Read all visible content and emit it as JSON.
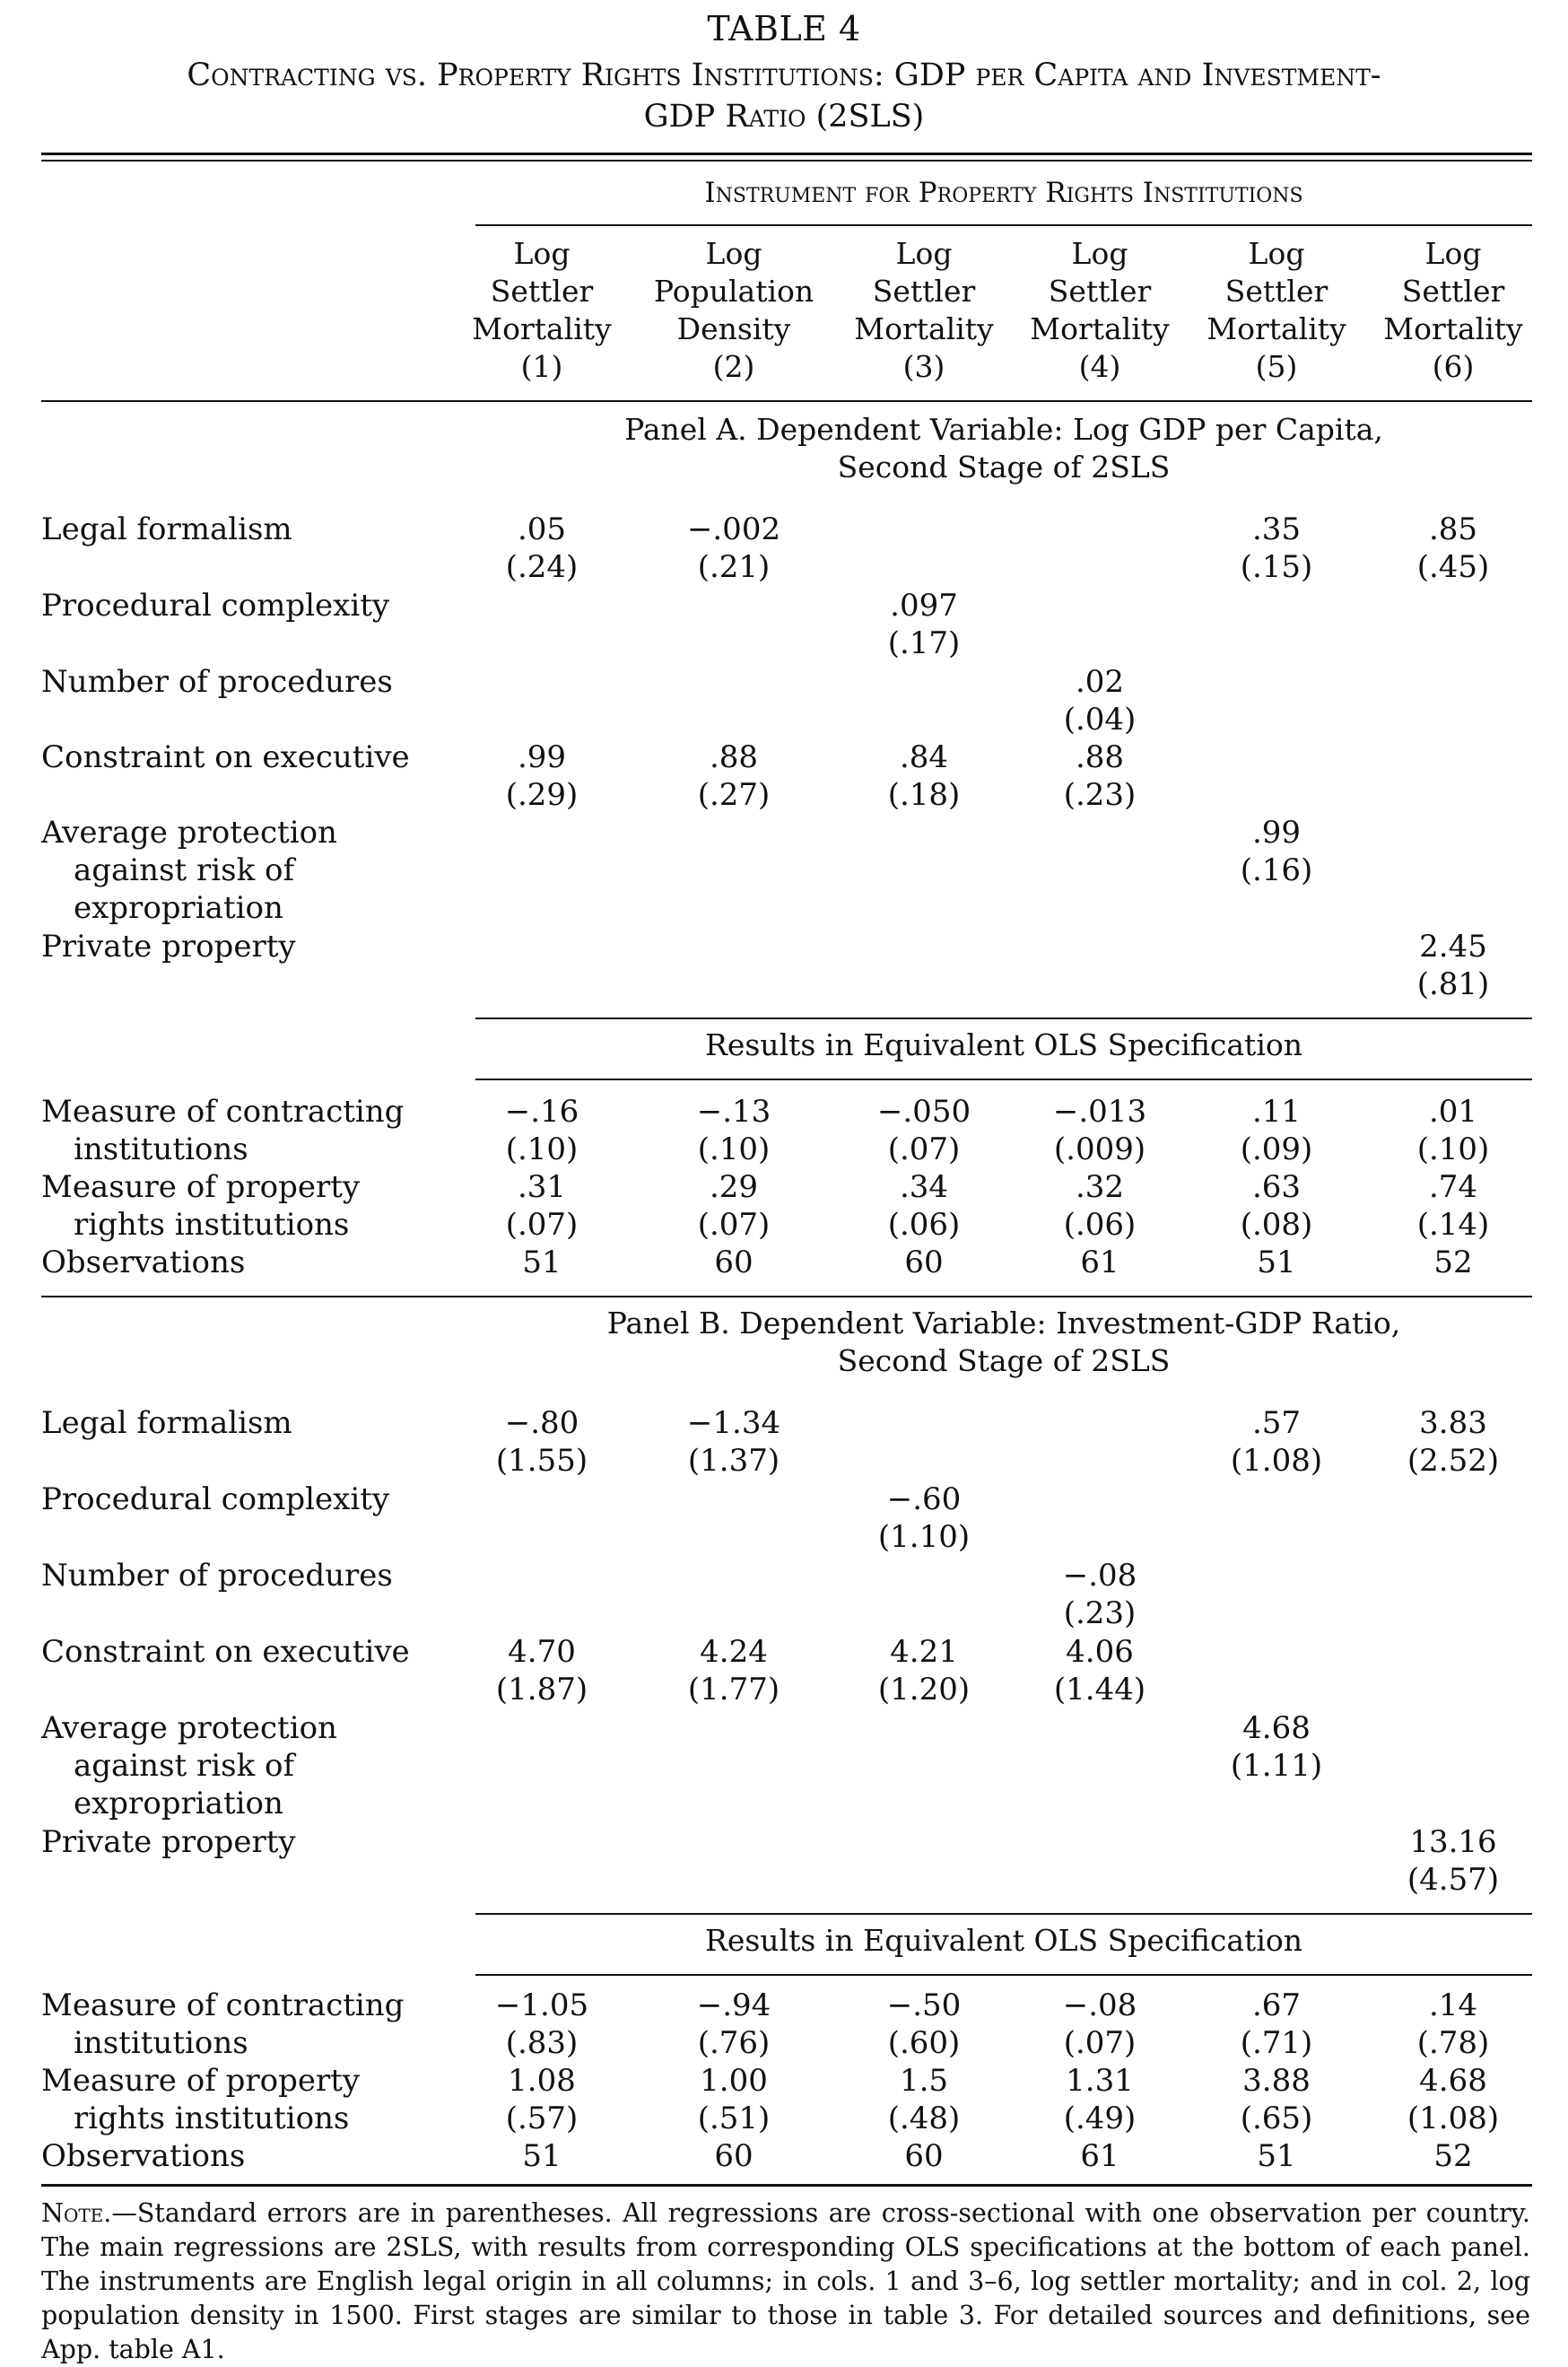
{
  "table_number": "TABLE 4",
  "title_line1": "Contracting vs. Property Rights Institutions: GDP per Capita and Investment-",
  "title_line2": "GDP Ratio (2SLS)",
  "instrument_header": "Instrument for Property Rights Institutions",
  "columns": [
    {
      "lines": [
        "Log",
        "Settler",
        "Mortality",
        "(1)"
      ]
    },
    {
      "lines": [
        "Log",
        "Population",
        "Density",
        "(2)"
      ]
    },
    {
      "lines": [
        "Log",
        "Settler",
        "Mortality",
        "(3)"
      ]
    },
    {
      "lines": [
        "Log",
        "Settler",
        "Mortality",
        "(4)"
      ]
    },
    {
      "lines": [
        "Log",
        "Settler",
        "Mortality",
        "(5)"
      ]
    },
    {
      "lines": [
        "Log",
        "Settler",
        "Mortality",
        "(6)"
      ]
    }
  ],
  "panel_a": {
    "title_line1": "Panel A. Dependent Variable: Log GDP per Capita,",
    "title_line2": "Second Stage of 2SLS",
    "rows": [
      {
        "label": [
          "Legal formalism"
        ],
        "coef": [
          ".05",
          "−.002",
          "",
          "",
          ".35",
          ".85"
        ],
        "se": [
          "(.24)",
          "(.21)",
          "",
          "",
          "(.15)",
          "(.45)"
        ]
      },
      {
        "label": [
          "Procedural complexity"
        ],
        "coef": [
          "",
          "",
          ".097",
          "",
          "",
          ""
        ],
        "se": [
          "",
          "",
          "(.17)",
          "",
          "",
          ""
        ]
      },
      {
        "label": [
          "Number of procedures"
        ],
        "coef": [
          "",
          "",
          "",
          ".02",
          "",
          ""
        ],
        "se": [
          "",
          "",
          "",
          "(.04)",
          "",
          ""
        ]
      },
      {
        "label": [
          "Constraint on executive"
        ],
        "coef": [
          ".99",
          ".88",
          ".84",
          ".88",
          "",
          ""
        ],
        "se": [
          "(.29)",
          "(.27)",
          "(.18)",
          "(.23)",
          "",
          ""
        ]
      },
      {
        "label": [
          "Average protection",
          "against risk of",
          "expropriation"
        ],
        "coef": [
          "",
          "",
          "",
          "",
          ".99",
          ""
        ],
        "se": [
          "",
          "",
          "",
          "",
          "(.16)",
          ""
        ]
      },
      {
        "label": [
          "Private property"
        ],
        "coef": [
          "",
          "",
          "",
          "",
          "",
          "2.45"
        ],
        "se": [
          "",
          "",
          "",
          "",
          "",
          "(.81)"
        ]
      }
    ],
    "ols_title": "Results in Equivalent OLS Specification",
    "ols_rows": [
      {
        "label": [
          "Measure of contracting",
          "institutions"
        ],
        "coef": [
          "−.16",
          "−.13",
          "−.050",
          "−.013",
          ".11",
          ".01"
        ],
        "se": [
          "(.10)",
          "(.10)",
          "(.07)",
          "(.009)",
          "(.09)",
          "(.10)"
        ]
      },
      {
        "label": [
          "Measure of property",
          "rights institutions"
        ],
        "coef": [
          ".31",
          ".29",
          ".34",
          ".32",
          ".63",
          ".74"
        ],
        "se": [
          "(.07)",
          "(.07)",
          "(.06)",
          "(.06)",
          "(.08)",
          "(.14)"
        ]
      }
    ],
    "observations_label": "Observations",
    "observations": [
      "51",
      "60",
      "60",
      "61",
      "51",
      "52"
    ]
  },
  "panel_b": {
    "title_line1": "Panel B. Dependent Variable: Investment-GDP Ratio,",
    "title_line2": "Second Stage of 2SLS",
    "rows": [
      {
        "label": [
          "Legal formalism"
        ],
        "coef": [
          "−.80",
          "−1.34",
          "",
          "",
          ".57",
          "3.83"
        ],
        "se": [
          "(1.55)",
          "(1.37)",
          "",
          "",
          "(1.08)",
          "(2.52)"
        ]
      },
      {
        "label": [
          "Procedural complexity"
        ],
        "coef": [
          "",
          "",
          "−.60",
          "",
          "",
          ""
        ],
        "se": [
          "",
          "",
          "(1.10)",
          "",
          "",
          ""
        ]
      },
      {
        "label": [
          "Number of procedures"
        ],
        "coef": [
          "",
          "",
          "",
          "−.08",
          "",
          ""
        ],
        "se": [
          "",
          "",
          "",
          "(.23)",
          "",
          ""
        ]
      },
      {
        "label": [
          "Constraint on executive"
        ],
        "coef": [
          "4.70",
          "4.24",
          "4.21",
          "4.06",
          "",
          ""
        ],
        "se": [
          "(1.87)",
          "(1.77)",
          "(1.20)",
          "(1.44)",
          "",
          ""
        ]
      },
      {
        "label": [
          "Average protection",
          "against risk of",
          "expropriation"
        ],
        "coef": [
          "",
          "",
          "",
          "",
          "4.68",
          ""
        ],
        "se": [
          "",
          "",
          "",
          "",
          "(1.11)",
          ""
        ]
      },
      {
        "label": [
          "Private property"
        ],
        "coef": [
          "",
          "",
          "",
          "",
          "",
          "13.16"
        ],
        "se": [
          "",
          "",
          "",
          "",
          "",
          "(4.57)"
        ]
      }
    ],
    "ols_title": "Results in Equivalent OLS Specification",
    "ols_rows": [
      {
        "label": [
          "Measure of contracting",
          "institutions"
        ],
        "coef": [
          "−1.05",
          "−.94",
          "−.50",
          "−.08",
          ".67",
          ".14"
        ],
        "se": [
          "(.83)",
          "(.76)",
          "(.60)",
          "(.07)",
          "(.71)",
          "(.78)"
        ]
      },
      {
        "label": [
          "Measure of property",
          "rights institutions"
        ],
        "coef": [
          "1.08",
          "1.00",
          "1.5",
          "1.31",
          "3.88",
          "4.68"
        ],
        "se": [
          "(.57)",
          "(.51)",
          "(.48)",
          "(.49)",
          "(.65)",
          "(1.08)"
        ]
      }
    ],
    "observations_label": "Observations",
    "observations": [
      "51",
      "60",
      "60",
      "61",
      "51",
      "52"
    ]
  },
  "note_label": "Note.",
  "note_text": "—Standard errors are in parentheses. All regressions are cross-sectional with one observation per country. The main regressions are 2SLS, with results from corresponding OLS specifications at the bottom of each panel. The instruments are English legal origin in all columns; in cols. 1 and 3–6, log settler mortality; and in col. 2, log population density in 1500. First stages are similar to those in table 3. For detailed sources and definitions, see App. table A1."
}
